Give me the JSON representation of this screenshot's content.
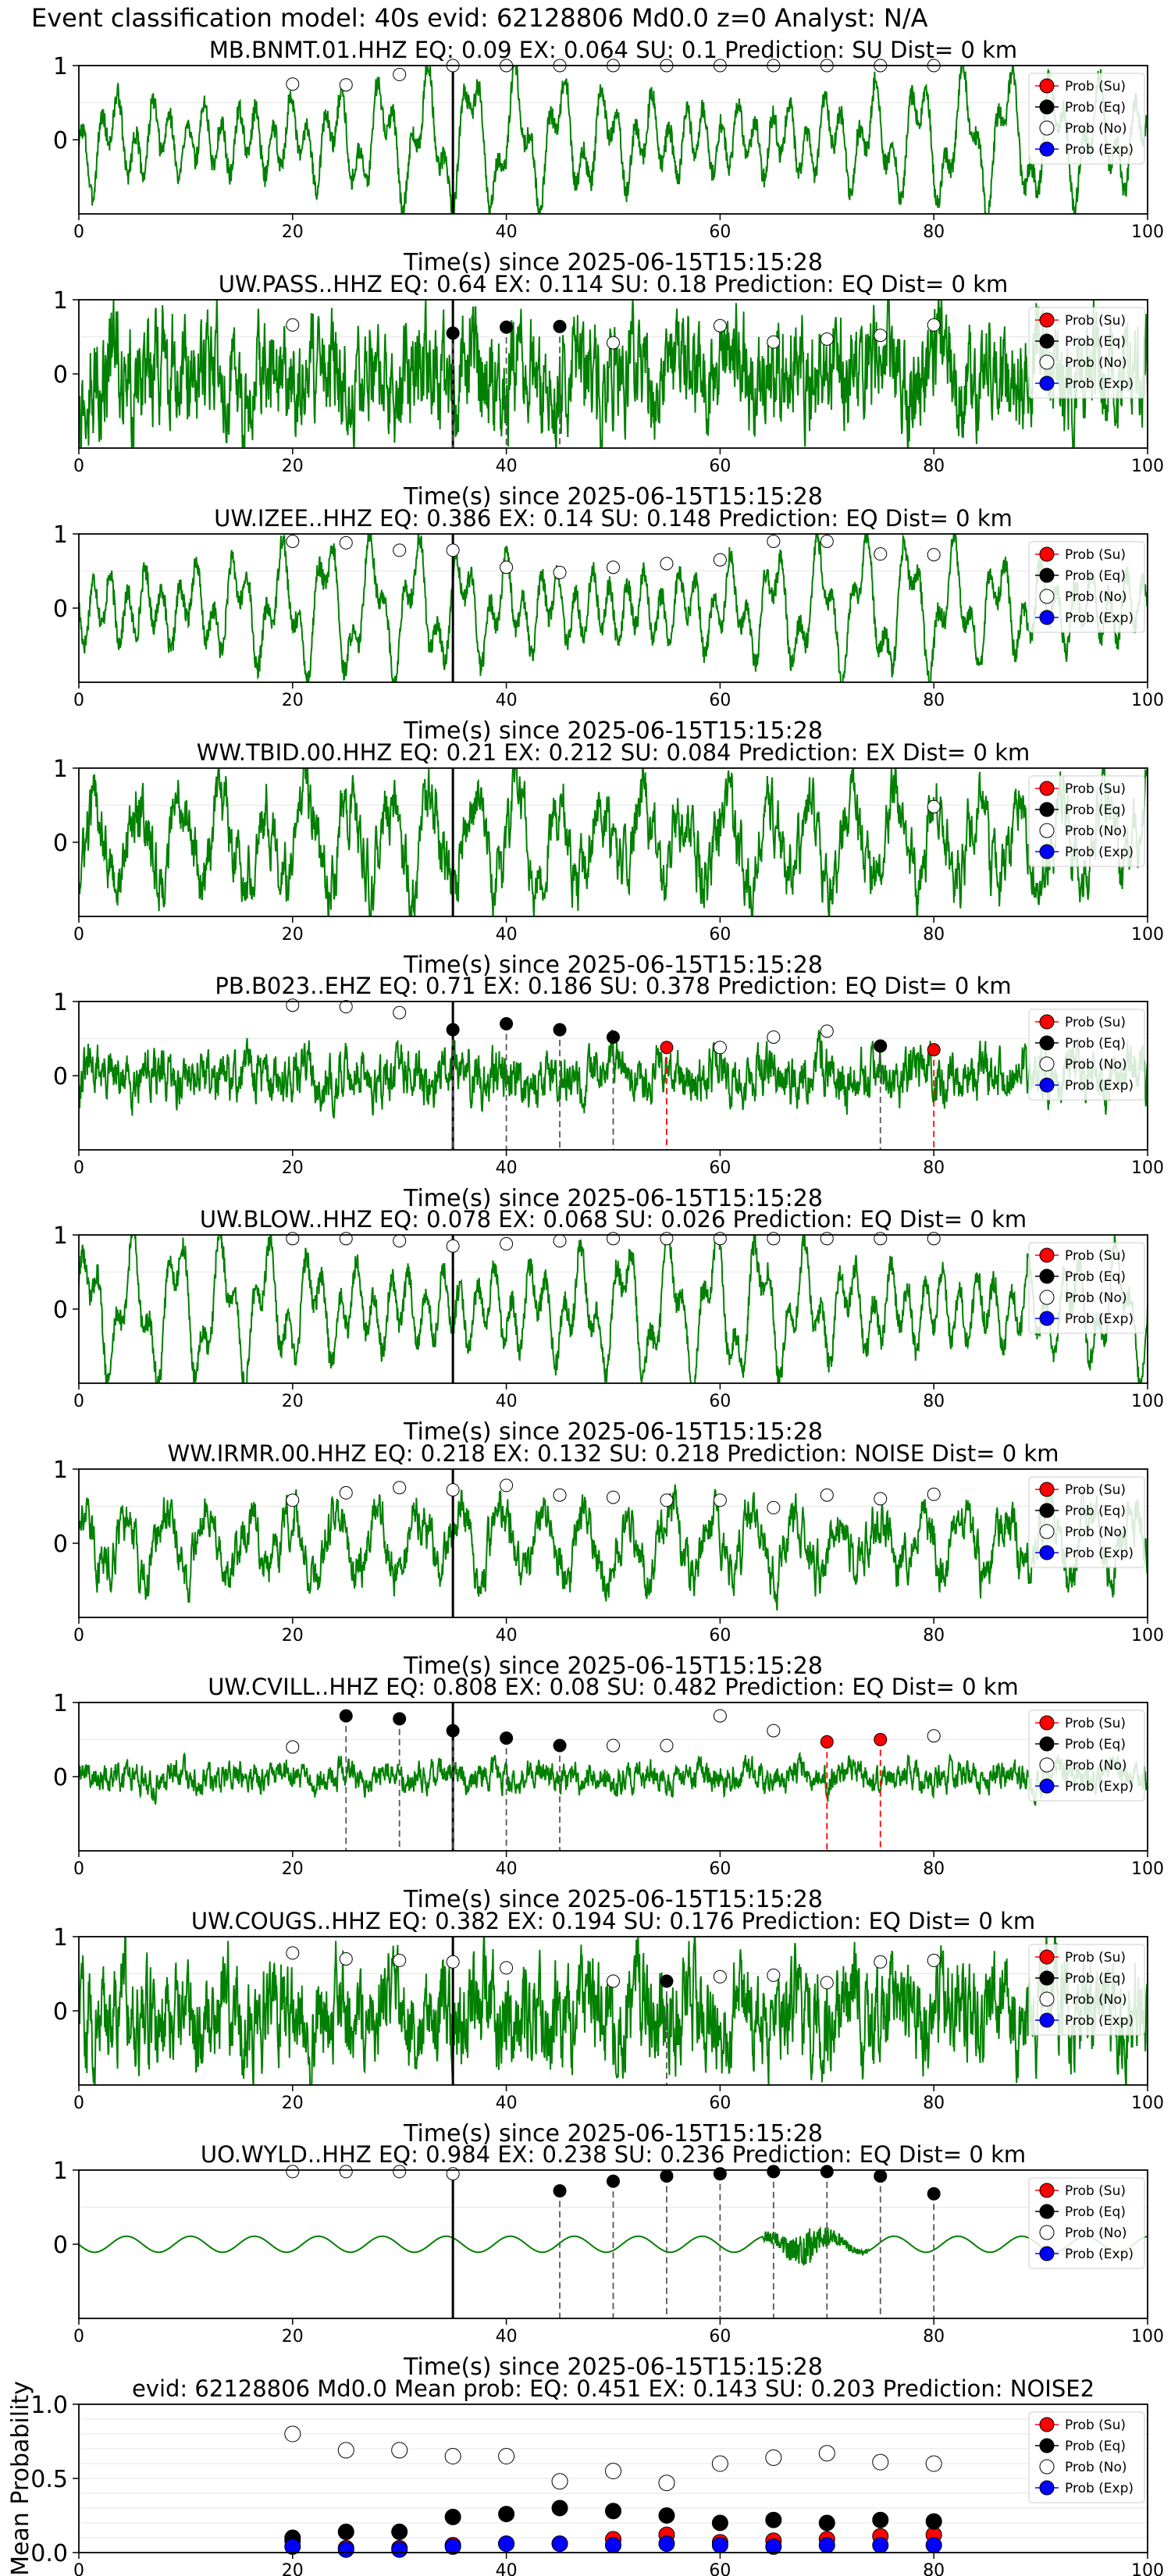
{
  "figure": {
    "suptitle": "Event classification model: 40s evid: 62128806 Md0.0 z=0 Analyst: N/A"
  },
  "legend_labels": [
    "Prob (Su)",
    "Prob (Eq)",
    "Prob (No)",
    "Prob (Exp)"
  ],
  "colors": {
    "trace": "#008000",
    "su": "#ff0000",
    "eq": "#000000",
    "noise": "#ffffff",
    "exp": "#0000ff",
    "grid": "#e6e6e6"
  },
  "chart_data": [
    {
      "type": "line",
      "title": "MB.BNMT.01.HHZ   EQ: 0.09  EX: 0.064  SU: 0.1   Prediction: SU    Dist= 0 km",
      "xlabel": "Time(s) since 2025-06-15T15:15:28",
      "xlim": [
        0,
        100
      ],
      "ylim": [
        -1,
        1
      ],
      "xticks": [
        0,
        20,
        40,
        60,
        80,
        100
      ],
      "yticks": [
        0,
        1
      ],
      "waveform": {
        "style": "low",
        "amplitude": 0.8
      },
      "origin_line_x": 35,
      "noise_points": {
        "x": [
          20,
          25,
          30,
          35,
          40,
          45,
          50,
          55,
          60,
          65,
          70,
          75,
          80
        ],
        "y": [
          0.75,
          0.74,
          0.88,
          1.0,
          1.0,
          1.0,
          1.0,
          1.0,
          1.0,
          1.0,
          1.0,
          1.0,
          1.0
        ]
      },
      "eq_picks": {
        "x": [],
        "y": []
      },
      "su_picks": {
        "x": [],
        "y": []
      }
    },
    {
      "type": "line",
      "title": "UW.PASS..HHZ   EQ: 0.64  EX: 0.114  SU: 0.18   Prediction: EQ    Dist= 0 km",
      "xlabel": "Time(s) since 2025-06-15T15:15:28",
      "xlim": [
        0,
        100
      ],
      "ylim": [
        -1,
        1
      ],
      "xticks": [
        0,
        20,
        40,
        60,
        80,
        100
      ],
      "yticks": [
        0,
        1
      ],
      "waveform": {
        "style": "noisy",
        "amplitude": 0.75
      },
      "origin_line_x": 35,
      "noise_points": {
        "x": [
          20,
          50,
          60,
          65,
          70,
          75,
          80
        ],
        "y": [
          0.66,
          0.42,
          0.65,
          0.43,
          0.47,
          0.52,
          0.66
        ]
      },
      "eq_picks": {
        "x": [
          35,
          40,
          45
        ],
        "y": [
          0.55,
          0.63,
          0.64
        ]
      },
      "su_picks": {
        "x": [],
        "y": []
      }
    },
    {
      "type": "line",
      "title": "UW.IZEE..HHZ   EQ: 0.386  EX: 0.14  SU: 0.148   Prediction: EQ    Dist= 0 km",
      "xlabel": "Time(s) since 2025-06-15T15:15:28",
      "xlim": [
        0,
        100
      ],
      "ylim": [
        -1,
        1
      ],
      "xticks": [
        0,
        20,
        40,
        60,
        80,
        100
      ],
      "yticks": [
        0,
        1
      ],
      "waveform": {
        "style": "low",
        "amplitude": 0.8
      },
      "origin_line_x": 35,
      "noise_points": {
        "x": [
          20,
          25,
          30,
          35,
          40,
          45,
          50,
          55,
          60,
          65,
          70,
          75,
          80
        ],
        "y": [
          0.9,
          0.88,
          0.78,
          0.78,
          0.55,
          0.48,
          0.55,
          0.6,
          0.65,
          0.9,
          0.9,
          0.73,
          0.72
        ]
      },
      "eq_picks": {
        "x": [],
        "y": []
      },
      "su_picks": {
        "x": [],
        "y": []
      }
    },
    {
      "type": "line",
      "title": "WW.TBID.00.HHZ   EQ: 0.21  EX: 0.212  SU: 0.084   Prediction: EX    Dist= 0 km",
      "xlabel": "Time(s) since 2025-06-15T15:15:28",
      "xlim": [
        0,
        100
      ],
      "ylim": [
        -1,
        1
      ],
      "xticks": [
        0,
        20,
        40,
        60,
        80,
        100
      ],
      "yticks": [
        0,
        1
      ],
      "waveform": {
        "style": "mixed",
        "amplitude": 0.75
      },
      "origin_line_x": 35,
      "noise_points": {
        "x": [
          80
        ],
        "y": [
          0.48
        ]
      },
      "eq_picks": {
        "x": [],
        "y": []
      },
      "su_picks": {
        "x": [],
        "y": []
      }
    },
    {
      "type": "line",
      "title": "PB.B023..EHZ   EQ: 0.71  EX: 0.186  SU: 0.378   Prediction: EQ    Dist= 0 km",
      "xlabel": "Time(s) since 2025-06-15T15:15:28",
      "xlim": [
        0,
        100
      ],
      "ylim": [
        -1,
        1
      ],
      "xticks": [
        0,
        20,
        40,
        60,
        80,
        100
      ],
      "yticks": [
        0,
        1
      ],
      "waveform": {
        "style": "noisy",
        "amplitude": 0.35
      },
      "origin_line_x": 35,
      "noise_points": {
        "x": [
          20,
          25,
          30,
          60,
          65,
          70
        ],
        "y": [
          0.95,
          0.93,
          0.85,
          0.38,
          0.52,
          0.6
        ]
      },
      "eq_picks": {
        "x": [
          35,
          40,
          45,
          50,
          75
        ],
        "y": [
          0.62,
          0.7,
          0.62,
          0.52,
          0.4
        ]
      },
      "su_picks": {
        "x": [
          55,
          80
        ],
        "y": [
          0.38,
          0.35
        ]
      }
    },
    {
      "type": "line",
      "title": "UW.BLOW..HHZ   EQ: 0.078  EX: 0.068  SU: 0.026   Prediction: EQ    Dist= 0 km",
      "xlabel": "Time(s) since 2025-06-15T15:15:28",
      "xlim": [
        0,
        100
      ],
      "ylim": [
        -1,
        1
      ],
      "xticks": [
        0,
        20,
        40,
        60,
        80,
        100
      ],
      "yticks": [
        0,
        1
      ],
      "waveform": {
        "style": "low",
        "amplitude": 0.85
      },
      "origin_line_x": 35,
      "noise_points": {
        "x": [
          20,
          25,
          30,
          35,
          40,
          45,
          50,
          55,
          60,
          65,
          70,
          75,
          80
        ],
        "y": [
          0.95,
          0.95,
          0.92,
          0.85,
          0.88,
          0.92,
          0.95,
          0.95,
          0.95,
          0.95,
          0.95,
          0.95,
          0.95
        ]
      },
      "eq_picks": {
        "x": [],
        "y": []
      },
      "su_picks": {
        "x": [],
        "y": []
      }
    },
    {
      "type": "line",
      "title": "WW.IRMR.00.HHZ   EQ: 0.218  EX: 0.132  SU: 0.218   Prediction: NOISE    Dist= 0 km",
      "xlabel": "Time(s) since 2025-06-15T15:15:28",
      "xlim": [
        0,
        100
      ],
      "ylim": [
        -1,
        1
      ],
      "xticks": [
        0,
        20,
        40,
        60,
        80,
        100
      ],
      "yticks": [
        0,
        1
      ],
      "waveform": {
        "style": "mixed",
        "amplitude": 0.55
      },
      "origin_line_x": 35,
      "noise_points": {
        "x": [
          20,
          25,
          30,
          35,
          40,
          45,
          50,
          55,
          60,
          65,
          70,
          75,
          80
        ],
        "y": [
          0.58,
          0.68,
          0.75,
          0.72,
          0.78,
          0.65,
          0.62,
          0.58,
          0.58,
          0.48,
          0.65,
          0.6,
          0.66
        ]
      },
      "eq_picks": {
        "x": [],
        "y": []
      },
      "su_picks": {
        "x": [],
        "y": []
      }
    },
    {
      "type": "line",
      "title": "UW.CVILL..HHZ   EQ: 0.808  EX: 0.08  SU: 0.482   Prediction: EQ    Dist= 0 km",
      "xlabel": "Time(s) since 2025-06-15T15:15:28",
      "xlim": [
        0,
        100
      ],
      "ylim": [
        -1,
        1
      ],
      "xticks": [
        0,
        20,
        40,
        60,
        80,
        100
      ],
      "yticks": [
        0,
        1
      ],
      "waveform": {
        "style": "noisy",
        "amplitude": 0.2
      },
      "origin_line_x": 35,
      "noise_points": {
        "x": [
          20,
          50,
          55,
          60,
          65,
          80
        ],
        "y": [
          0.4,
          0.42,
          0.42,
          0.82,
          0.62,
          0.55
        ]
      },
      "eq_picks": {
        "x": [
          25,
          30,
          35,
          40,
          45
        ],
        "y": [
          0.82,
          0.78,
          0.62,
          0.52,
          0.42
        ]
      },
      "su_picks": {
        "x": [
          70,
          75
        ],
        "y": [
          0.47,
          0.5
        ]
      }
    },
    {
      "type": "line",
      "title": "UW.COUGS..HHZ   EQ: 0.382  EX: 0.194  SU: 0.176   Prediction: EQ    Dist= 0 km",
      "xlabel": "Time(s) since 2025-06-15T15:15:28",
      "xlim": [
        0,
        100
      ],
      "ylim": [
        -1,
        1
      ],
      "xticks": [
        0,
        20,
        40,
        60,
        80,
        100
      ],
      "yticks": [
        0,
        1
      ],
      "waveform": {
        "style": "noisy",
        "amplitude": 0.7
      },
      "origin_line_x": 35,
      "noise_points": {
        "x": [
          20,
          25,
          30,
          35,
          40,
          50,
          60,
          65,
          70,
          75,
          80
        ],
        "y": [
          0.78,
          0.7,
          0.68,
          0.66,
          0.58,
          0.4,
          0.46,
          0.48,
          0.38,
          0.66,
          0.68
        ]
      },
      "eq_picks": {
        "x": [
          55
        ],
        "y": [
          0.4
        ]
      },
      "su_picks": {
        "x": [],
        "y": []
      }
    },
    {
      "type": "line",
      "title": "UO.WYLD..HHZ   EQ: 0.984  EX: 0.238  SU: 0.236   Prediction: EQ    Dist= 0 km",
      "xlabel": "Time(s) since 2025-06-15T15:15:28",
      "xlim": [
        0,
        100
      ],
      "ylim": [
        -1,
        1
      ],
      "xticks": [
        0,
        20,
        40,
        60,
        80,
        100
      ],
      "yticks": [
        0,
        1
      ],
      "waveform": {
        "style": "smooth",
        "amplitude": 0.12
      },
      "origin_line_x": 35,
      "noise_points": {
        "x": [
          20,
          25,
          30,
          35
        ],
        "y": [
          0.98,
          0.98,
          0.98,
          0.95
        ]
      },
      "eq_picks": {
        "x": [
          45,
          50,
          55,
          60,
          65,
          70,
          75,
          80
        ],
        "y": [
          0.72,
          0.85,
          0.92,
          0.95,
          0.98,
          0.98,
          0.92,
          0.68
        ]
      },
      "su_picks": {
        "x": [],
        "y": []
      }
    },
    {
      "type": "scatter",
      "title": "evid: 62128806  Md0.0   Mean prob:   EQ: 0.451  EX: 0.143  SU: 0.203   Prediction: NOISE2",
      "xlabel": "",
      "ylabel": "Mean Probability",
      "xlim": [
        0,
        100
      ],
      "ylim": [
        0,
        1
      ],
      "xticks": [
        0,
        20,
        40,
        60,
        80,
        100
      ],
      "yticks": [
        0.0,
        0.5,
        1.0
      ],
      "x": [
        20,
        25,
        30,
        35,
        40,
        45,
        50,
        55,
        60,
        65,
        70,
        75,
        80
      ],
      "series": [
        {
          "name": "Prob (Su)",
          "values": [
            0.08,
            0.03,
            0.03,
            0.05,
            0.06,
            0.06,
            0.09,
            0.12,
            0.07,
            0.08,
            0.09,
            0.11,
            0.12
          ]
        },
        {
          "name": "Prob (Eq)",
          "values": [
            0.1,
            0.14,
            0.14,
            0.24,
            0.26,
            0.3,
            0.28,
            0.25,
            0.2,
            0.22,
            0.2,
            0.22,
            0.21
          ]
        },
        {
          "name": "Prob (No)",
          "values": [
            0.8,
            0.69,
            0.69,
            0.65,
            0.65,
            0.48,
            0.55,
            0.47,
            0.6,
            0.64,
            0.67,
            0.61,
            0.6
          ]
        },
        {
          "name": "Prob (Exp)",
          "values": [
            0.04,
            0.02,
            0.02,
            0.04,
            0.06,
            0.06,
            0.05,
            0.06,
            0.05,
            0.04,
            0.05,
            0.05,
            0.05
          ]
        }
      ]
    }
  ]
}
